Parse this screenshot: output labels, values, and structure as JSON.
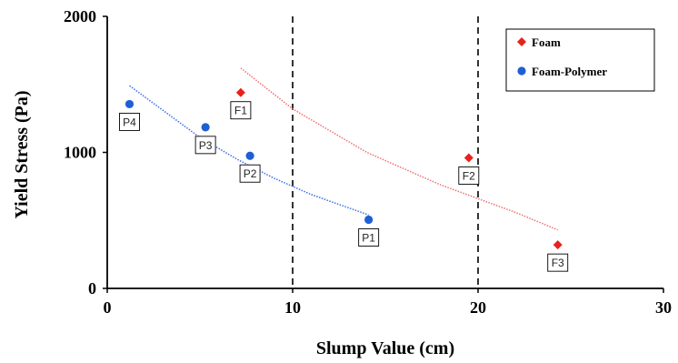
{
  "chart_data": {
    "type": "scatter",
    "title": "",
    "xlabel": "Slump Value (cm)",
    "ylabel": "Yield Stress (Pa)",
    "xlim": [
      0,
      30
    ],
    "ylim": [
      0,
      2000
    ],
    "xticks": [
      "0",
      "10",
      "20",
      "30"
    ],
    "yticks": [
      "0",
      "1000",
      "2000"
    ],
    "grid": false,
    "legend_position": "top-right",
    "reference_lines_x": [
      10,
      20
    ],
    "series": [
      {
        "name": "Foam",
        "marker": "diamond",
        "color": "#e8211d",
        "trend_color": "#f07070",
        "points": [
          {
            "label": "F1",
            "x": 7.2,
            "y": 1440
          },
          {
            "label": "F2",
            "x": 19.5,
            "y": 960
          },
          {
            "label": "F3",
            "x": 24.3,
            "y": 320
          }
        ],
        "trendline": {
          "x": [
            7.2,
            10,
            14,
            18,
            22,
            24.3
          ],
          "y": [
            1620,
            1320,
            1000,
            760,
            560,
            430
          ]
        }
      },
      {
        "name": "Foam-Polymer",
        "marker": "circle",
        "color": "#1f5fd6",
        "trend_color": "#3b6fe8",
        "points": [
          {
            "label": "P1",
            "x": 14.1,
            "y": 505
          },
          {
            "label": "P2",
            "x": 7.7,
            "y": 975
          },
          {
            "label": "P3",
            "x": 5.3,
            "y": 1185
          },
          {
            "label": "P4",
            "x": 1.2,
            "y": 1355
          }
        ],
        "trendline": {
          "x": [
            1.2,
            3,
            5,
            7,
            9,
            11,
            14.1
          ],
          "y": [
            1490,
            1310,
            1110,
            950,
            810,
            690,
            540
          ]
        }
      }
    ]
  }
}
